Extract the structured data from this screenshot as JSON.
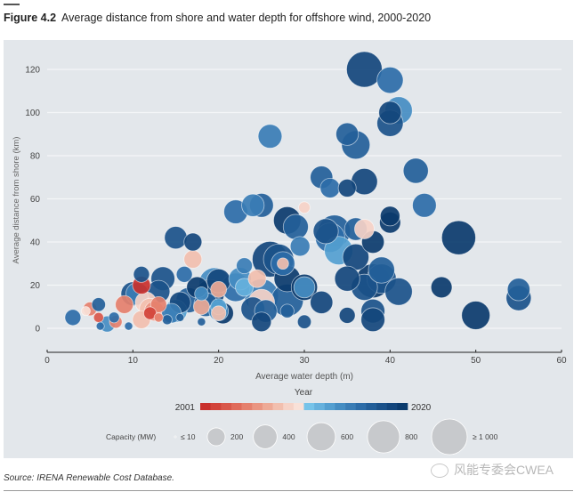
{
  "figure": {
    "number": "Figure 4.2",
    "title": "Average distance from shore and water depth for offshore wind, 2000-2020",
    "source": "Source: IRENA Renewable Cost Database.",
    "watermark": "风能专委会CWEA"
  },
  "colors": {
    "panel_bg": "#e3e7eb",
    "gridline": "#f4f6f8",
    "year_scale": [
      "#c9302c",
      "#d2433a",
      "#d9574a",
      "#e06b5a",
      "#e5806d",
      "#ea9581",
      "#eeaa96",
      "#f2bfae",
      "#f6d3c7",
      "#f9e1d8",
      "#76c3e9",
      "#66b1dd",
      "#549fd0",
      "#458dc2",
      "#3a7db5",
      "#2d6da8",
      "#235f99",
      "#1b528a",
      "#13467c",
      "#0b3b6d"
    ]
  },
  "chart_data": {
    "type": "scatter",
    "title": "Average distance from shore and water depth for offshore wind, 2000-2020",
    "xlabel": "Average water depth (m)",
    "ylabel": "Average distance from shore (km)",
    "xlim": [
      0,
      60
    ],
    "ylim": [
      0,
      125
    ],
    "xticks": [
      0,
      10,
      20,
      30,
      40,
      50,
      60
    ],
    "yticks": [
      0,
      20,
      40,
      60,
      80,
      100,
      120
    ],
    "grid": "horizontal",
    "legend_color": {
      "title": "Year",
      "min_label": "2001",
      "max_label": "2020",
      "min": 2001,
      "max": 2020
    },
    "legend_size": {
      "title": "Capacity (MW)",
      "entries": [
        {
          "label": "≤ 10",
          "value": 10
        },
        {
          "label": "200",
          "value": 200
        },
        {
          "label": "400",
          "value": 400
        },
        {
          "label": "600",
          "value": 600
        },
        {
          "label": "800",
          "value": 800
        },
        {
          "label": "≥ 1 000",
          "value": 1000
        }
      ]
    },
    "points": [
      {
        "x": 3,
        "y": 5,
        "year": 2016,
        "mw": 150
      },
      {
        "x": 4.5,
        "y": 8,
        "year": 2010,
        "mw": 30
      },
      {
        "x": 5,
        "y": 9,
        "year": 2005,
        "mw": 100
      },
      {
        "x": 6,
        "y": 5,
        "year": 2003,
        "mw": 40
      },
      {
        "x": 6,
        "y": 11,
        "year": 2017,
        "mw": 100
      },
      {
        "x": 6.2,
        "y": 1,
        "year": 2016,
        "mw": 20
      },
      {
        "x": 7,
        "y": 2,
        "year": 2014,
        "mw": 150
      },
      {
        "x": 7.8,
        "y": 5,
        "year": 2016,
        "mw": 50
      },
      {
        "x": 8,
        "y": 3,
        "year": 2005,
        "mw": 80
      },
      {
        "x": 9,
        "y": 11,
        "year": 2005,
        "mw": 200
      },
      {
        "x": 9.5,
        "y": 1,
        "year": 2016,
        "mw": 20
      },
      {
        "x": 10,
        "y": 16,
        "year": 2018,
        "mw": 400
      },
      {
        "x": 10.5,
        "y": 16,
        "year": 2015,
        "mw": 350
      },
      {
        "x": 11,
        "y": 20,
        "year": 2001,
        "mw": 200
      },
      {
        "x": 11,
        "y": 25,
        "year": 2018,
        "mw": 150
      },
      {
        "x": 11,
        "y": 4,
        "year": 2008,
        "mw": 200
      },
      {
        "x": 11.5,
        "y": 12,
        "year": 2009,
        "mw": 300
      },
      {
        "x": 12,
        "y": 7,
        "year": 2002,
        "mw": 80
      },
      {
        "x": 12,
        "y": 9,
        "year": 2008,
        "mw": 300
      },
      {
        "x": 12.5,
        "y": 8,
        "year": 2006,
        "mw": 250
      },
      {
        "x": 13,
        "y": 5,
        "year": 2005,
        "mw": 30
      },
      {
        "x": 13,
        "y": 11,
        "year": 2005,
        "mw": 150
      },
      {
        "x": 13,
        "y": 17,
        "year": 2018,
        "mw": 350
      },
      {
        "x": 13.5,
        "y": 23,
        "year": 2018,
        "mw": 400
      },
      {
        "x": 14,
        "y": 4,
        "year": 2017,
        "mw": 40
      },
      {
        "x": 14.5,
        "y": 7,
        "year": 2015,
        "mw": 250
      },
      {
        "x": 15,
        "y": 8,
        "year": 2013,
        "mw": 350
      },
      {
        "x": 15.5,
        "y": 5,
        "year": 2017,
        "mw": 20
      },
      {
        "x": 15.5,
        "y": 12,
        "year": 2019,
        "mw": 300
      },
      {
        "x": 16,
        "y": 25,
        "year": 2016,
        "mw": 150
      },
      {
        "x": 15,
        "y": 42,
        "year": 2018,
        "mw": 350
      },
      {
        "x": 16.5,
        "y": 13,
        "year": 2017,
        "mw": 450
      },
      {
        "x": 17,
        "y": 32,
        "year": 2008,
        "mw": 200
      },
      {
        "x": 17,
        "y": 40,
        "year": 2019,
        "mw": 200
      },
      {
        "x": 17.5,
        "y": 19,
        "year": 2020,
        "mw": 300
      },
      {
        "x": 18,
        "y": 16,
        "year": 2014,
        "mw": 100
      },
      {
        "x": 18,
        "y": 10,
        "year": 2007,
        "mw": 150
      },
      {
        "x": 18,
        "y": 3,
        "year": 2017,
        "mw": 20
      },
      {
        "x": 18.5,
        "y": 11,
        "year": 2017,
        "mw": 400
      },
      {
        "x": 19,
        "y": 16,
        "year": 2019,
        "mw": 600
      },
      {
        "x": 19.5,
        "y": 21,
        "year": 2014,
        "mw": 700
      },
      {
        "x": 20,
        "y": 8,
        "year": 2014,
        "mw": 250
      },
      {
        "x": 20,
        "y": 18,
        "year": 2007,
        "mw": 150
      },
      {
        "x": 20,
        "y": 22,
        "year": 2019,
        "mw": 400
      },
      {
        "x": 20.5,
        "y": 7,
        "year": 2020,
        "mw": 300
      },
      {
        "x": 20,
        "y": 10,
        "year": 2013,
        "mw": 150
      },
      {
        "x": 20,
        "y": 7,
        "year": 2008,
        "mw": 120
      },
      {
        "x": 22,
        "y": 19,
        "year": 2016,
        "mw": 600
      },
      {
        "x": 22,
        "y": 54,
        "year": 2016,
        "mw": 400
      },
      {
        "x": 22.5,
        "y": 23,
        "year": 2014,
        "mw": 350
      },
      {
        "x": 23,
        "y": 19,
        "year": 2012,
        "mw": 200
      },
      {
        "x": 23,
        "y": 29,
        "year": 2015,
        "mw": 150
      },
      {
        "x": 24,
        "y": 9,
        "year": 2018,
        "mw": 400
      },
      {
        "x": 24,
        "y": 57,
        "year": 2015,
        "mw": 350
      },
      {
        "x": 24.5,
        "y": 23,
        "year": 2008,
        "mw": 200
      },
      {
        "x": 25,
        "y": 15,
        "year": 2015,
        "mw": 900
      },
      {
        "x": 25,
        "y": 12,
        "year": 2009,
        "mw": 500
      },
      {
        "x": 25,
        "y": 3,
        "year": 2019,
        "mw": 250
      },
      {
        "x": 25,
        "y": 57,
        "year": 2017,
        "mw": 400
      },
      {
        "x": 25.5,
        "y": 8,
        "year": 2017,
        "mw": 350
      },
      {
        "x": 26,
        "y": 32,
        "year": 2019,
        "mw": 1000
      },
      {
        "x": 26,
        "y": 89,
        "year": 2015,
        "mw": 400
      },
      {
        "x": 27,
        "y": 32,
        "year": 2018,
        "mw": 700
      },
      {
        "x": 27.5,
        "y": 30,
        "year": 2016,
        "mw": 400
      },
      {
        "x": 27.5,
        "y": 30,
        "year": 2008,
        "mw": 60
      },
      {
        "x": 28,
        "y": 50,
        "year": 2020,
        "mw": 550
      },
      {
        "x": 28,
        "y": 23,
        "year": 2020,
        "mw": 500
      },
      {
        "x": 28,
        "y": 13,
        "year": 2017,
        "mw": 800
      },
      {
        "x": 28,
        "y": 8,
        "year": 2017,
        "mw": 100
      },
      {
        "x": 29,
        "y": 47,
        "year": 2017,
        "mw": 450
      },
      {
        "x": 29.5,
        "y": 38,
        "year": 2015,
        "mw": 250
      },
      {
        "x": 30,
        "y": 56,
        "year": 2009,
        "mw": 60
      },
      {
        "x": 30,
        "y": 19,
        "year": 2020,
        "mw": 500
      },
      {
        "x": 30,
        "y": 19,
        "year": 2014,
        "mw": 300
      },
      {
        "x": 30,
        "y": 3,
        "year": 2018,
        "mw": 100
      },
      {
        "x": 32,
        "y": 12,
        "year": 2019,
        "mw": 350
      },
      {
        "x": 32,
        "y": 70,
        "year": 2017,
        "mw": 350
      },
      {
        "x": 32.5,
        "y": 45,
        "year": 2018,
        "mw": 450
      },
      {
        "x": 33,
        "y": 65,
        "year": 2016,
        "mw": 250
      },
      {
        "x": 33,
        "y": 42,
        "year": 2016,
        "mw": 650
      },
      {
        "x": 33.5,
        "y": 45,
        "year": 2017,
        "mw": 800
      },
      {
        "x": 34,
        "y": 36,
        "year": 2013,
        "mw": 600
      },
      {
        "x": 35,
        "y": 23,
        "year": 2019,
        "mw": 450
      },
      {
        "x": 35,
        "y": 65,
        "year": 2019,
        "mw": 200
      },
      {
        "x": 35,
        "y": 90,
        "year": 2017,
        "mw": 350
      },
      {
        "x": 35,
        "y": 6,
        "year": 2019,
        "mw": 150
      },
      {
        "x": 36,
        "y": 85,
        "year": 2017,
        "mw": 600
      },
      {
        "x": 36,
        "y": 46,
        "year": 2017,
        "mw": 350
      },
      {
        "x": 36,
        "y": 33,
        "year": 2019,
        "mw": 500
      },
      {
        "x": 37,
        "y": 120,
        "year": 2019,
        "mw": 1000
      },
      {
        "x": 37,
        "y": 68,
        "year": 2019,
        "mw": 500
      },
      {
        "x": 37,
        "y": 19,
        "year": 2018,
        "mw": 500
      },
      {
        "x": 37,
        "y": 46,
        "year": 2009,
        "mw": 250
      },
      {
        "x": 38,
        "y": 40,
        "year": 2020,
        "mw": 350
      },
      {
        "x": 38,
        "y": 22,
        "year": 2020,
        "mw": 900
      },
      {
        "x": 38,
        "y": 8,
        "year": 2018,
        "mw": 400
      },
      {
        "x": 38,
        "y": 4,
        "year": 2019,
        "mw": 400
      },
      {
        "x": 39,
        "y": 23,
        "year": 2018,
        "mw": 650
      },
      {
        "x": 39,
        "y": 27,
        "year": 2017,
        "mw": 500
      },
      {
        "x": 40,
        "y": 115,
        "year": 2016,
        "mw": 500
      },
      {
        "x": 40,
        "y": 100,
        "year": 2019,
        "mw": 350
      },
      {
        "x": 40,
        "y": 95,
        "year": 2018,
        "mw": 500
      },
      {
        "x": 40,
        "y": 49,
        "year": 2020,
        "mw": 300
      },
      {
        "x": 40,
        "y": 52,
        "year": 2020,
        "mw": 250
      },
      {
        "x": 41,
        "y": 101,
        "year": 2014,
        "mw": 550
      },
      {
        "x": 41,
        "y": 17,
        "year": 2018,
        "mw": 550
      },
      {
        "x": 43,
        "y": 73,
        "year": 2017,
        "mw": 450
      },
      {
        "x": 44,
        "y": 57,
        "year": 2016,
        "mw": 400
      },
      {
        "x": 46,
        "y": 19,
        "year": 2020,
        "mw": 300
      },
      {
        "x": 48,
        "y": 42,
        "year": 2020,
        "mw": 900
      },
      {
        "x": 50,
        "y": 6,
        "year": 2020,
        "mw": 600
      },
      {
        "x": 55,
        "y": 14,
        "year": 2018,
        "mw": 450
      },
      {
        "x": 55,
        "y": 18,
        "year": 2017,
        "mw": 350
      }
    ]
  }
}
